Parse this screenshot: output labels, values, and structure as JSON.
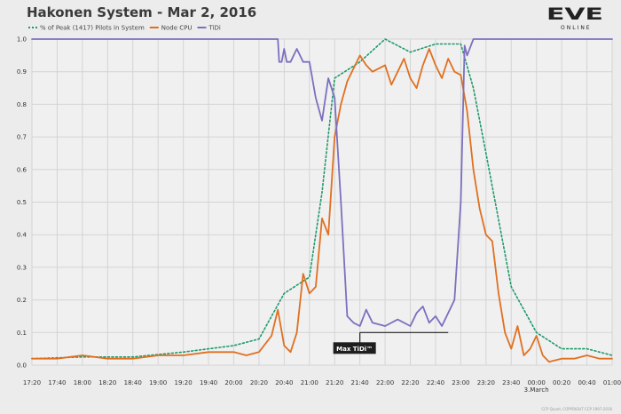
{
  "header": {
    "title": "Hakonen System - Mar 2, 2016"
  },
  "logo": {
    "main": "EVE",
    "sub": "ONLINE"
  },
  "footer": {
    "copyright": "CCP Quant, COPYRIGHT CCP 1997-2016"
  },
  "colors": {
    "pilots": "#1f9a6a",
    "cpu": "#e07020",
    "tidi": "#7b70bf",
    "annotation_bg": "#1e1e1e"
  },
  "chart_data": {
    "type": "line",
    "title": "Hakonen System - Mar 2, 2016",
    "xlabel": "",
    "ylabel": "",
    "x_unit": "time (hh:mm, Mar 2 – Mar 3, 2016)",
    "xlim": [
      "17:20",
      "01:00"
    ],
    "ylim": [
      0,
      1.0
    ],
    "grid": true,
    "legend_position": "top-left",
    "x_ticks": [
      "17:20",
      "17:40",
      "18:00",
      "18:20",
      "18:40",
      "19:00",
      "19:20",
      "19:40",
      "20:00",
      "20:20",
      "20:40",
      "21:00",
      "21:20",
      "21:40",
      "22:00",
      "22:20",
      "22:40",
      "23:00",
      "23:20",
      "23:40",
      "00:00",
      "00:20",
      "00:40",
      "01:00"
    ],
    "x_tick_sublabels": {
      "00:00": "3.March"
    },
    "y_ticks": [
      "0.0",
      "0.1",
      "0.2",
      "0.3",
      "0.4",
      "0.5",
      "0.6",
      "0.7",
      "0.8",
      "0.9",
      "1.0"
    ],
    "annotation": {
      "label": "Max TiDi™",
      "value": 0.1,
      "x_start": "21:40",
      "x_end": "22:50"
    },
    "series": [
      {
        "name": "% of Peak (1417) Pilots in System",
        "style": "dotted",
        "color": "#1f9a6a",
        "x": [
          "17:20",
          "18:00",
          "18:40",
          "19:20",
          "20:00",
          "20:20",
          "20:40",
          "21:00",
          "21:10",
          "21:20",
          "21:40",
          "22:00",
          "22:20",
          "22:40",
          "23:00",
          "23:10",
          "23:20",
          "23:40",
          "00:00",
          "00:20",
          "00:40",
          "01:00"
        ],
        "y": [
          0.02,
          0.025,
          0.025,
          0.04,
          0.06,
          0.08,
          0.22,
          0.27,
          0.53,
          0.88,
          0.93,
          1.0,
          0.96,
          0.985,
          0.985,
          0.85,
          0.65,
          0.24,
          0.1,
          0.05,
          0.05,
          0.03
        ]
      },
      {
        "name": "Node CPU",
        "style": "solid",
        "color": "#e07020",
        "x": [
          "17:20",
          "17:40",
          "18:00",
          "18:20",
          "18:40",
          "19:00",
          "19:20",
          "19:40",
          "20:00",
          "20:10",
          "20:20",
          "20:30",
          "20:35",
          "20:40",
          "20:45",
          "20:50",
          "20:55",
          "21:00",
          "21:05",
          "21:10",
          "21:15",
          "21:20",
          "21:25",
          "21:30",
          "21:40",
          "21:45",
          "21:50",
          "22:00",
          "22:05",
          "22:10",
          "22:15",
          "22:20",
          "22:25",
          "22:30",
          "22:35",
          "22:40",
          "22:45",
          "22:50",
          "22:55",
          "23:00",
          "23:05",
          "23:10",
          "23:15",
          "23:20",
          "23:25",
          "23:30",
          "23:35",
          "23:40",
          "23:45",
          "23:50",
          "23:55",
          "00:00",
          "00:05",
          "00:10",
          "00:20",
          "00:30",
          "00:40",
          "00:50",
          "01:00"
        ],
        "y": [
          0.02,
          0.02,
          0.03,
          0.02,
          0.02,
          0.03,
          0.03,
          0.04,
          0.04,
          0.03,
          0.04,
          0.09,
          0.17,
          0.06,
          0.04,
          0.1,
          0.28,
          0.22,
          0.24,
          0.45,
          0.4,
          0.7,
          0.8,
          0.87,
          0.95,
          0.92,
          0.9,
          0.92,
          0.86,
          0.9,
          0.94,
          0.88,
          0.85,
          0.92,
          0.97,
          0.92,
          0.88,
          0.94,
          0.9,
          0.89,
          0.78,
          0.6,
          0.48,
          0.4,
          0.38,
          0.22,
          0.1,
          0.05,
          0.12,
          0.03,
          0.05,
          0.09,
          0.03,
          0.01,
          0.02,
          0.02,
          0.03,
          0.02,
          0.02
        ]
      },
      {
        "name": "TiDi",
        "style": "solid",
        "color": "#7b70bf",
        "x": [
          "17:20",
          "20:35",
          "20:36",
          "20:38",
          "20:40",
          "20:42",
          "20:45",
          "20:50",
          "20:55",
          "21:00",
          "21:05",
          "21:10",
          "21:15",
          "21:20",
          "21:25",
          "21:30",
          "21:35",
          "21:40",
          "21:45",
          "21:50",
          "22:00",
          "22:10",
          "22:20",
          "22:25",
          "22:30",
          "22:35",
          "22:40",
          "22:45",
          "22:50",
          "22:55",
          "23:00",
          "23:03",
          "23:05",
          "23:10",
          "23:20",
          "01:00"
        ],
        "y": [
          1.0,
          1.0,
          0.93,
          0.93,
          0.97,
          0.93,
          0.93,
          0.97,
          0.93,
          0.93,
          0.82,
          0.75,
          0.88,
          0.82,
          0.5,
          0.15,
          0.13,
          0.12,
          0.17,
          0.13,
          0.12,
          0.14,
          0.12,
          0.16,
          0.18,
          0.13,
          0.15,
          0.12,
          0.16,
          0.2,
          0.5,
          0.98,
          0.95,
          1.0,
          1.0,
          1.0
        ]
      }
    ]
  }
}
